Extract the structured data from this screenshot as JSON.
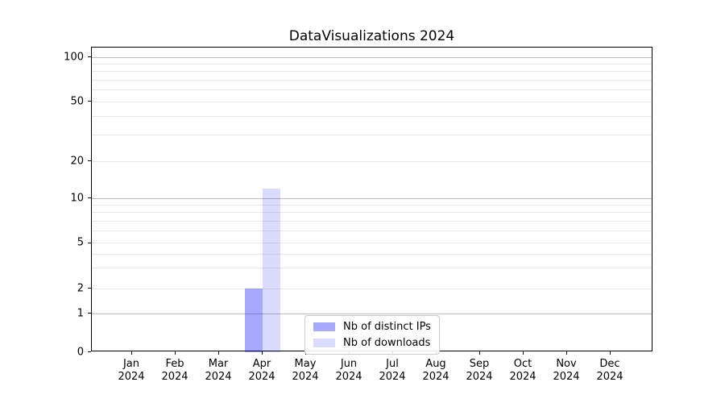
{
  "chart_data": {
    "type": "bar",
    "title": "DataVisualizations 2024",
    "x_year": "2024",
    "categories": [
      "Jan",
      "Feb",
      "Mar",
      "Apr",
      "May",
      "Jun",
      "Jul",
      "Aug",
      "Sep",
      "Oct",
      "Nov",
      "Dec"
    ],
    "series": [
      {
        "name": "Nb of distinct IPs",
        "color": "#0000ff",
        "alpha": 0.34,
        "apparent_color": "#a9a9ff",
        "values": [
          0,
          0,
          0,
          2,
          0,
          0,
          0,
          0,
          0,
          0,
          0,
          0
        ]
      },
      {
        "name": "Nb of downloads",
        "color": "#0000ff",
        "alpha": 0.14,
        "apparent_color": "#dcdcff",
        "values": [
          0,
          0,
          0,
          12,
          0,
          0,
          0,
          0,
          0,
          0,
          0,
          0
        ]
      }
    ],
    "y_scale": "symlog",
    "y_ticks_labeled": [
      0,
      1,
      2,
      5,
      10,
      20,
      50,
      100
    ],
    "y_gridlines_major": [
      1,
      10,
      100
    ],
    "y_gridlines_minor": [
      2,
      3,
      4,
      5,
      6,
      7,
      8,
      9,
      20,
      30,
      40,
      50,
      60,
      70,
      80,
      90
    ],
    "ylim": [
      0,
      120
    ],
    "grid": "on",
    "legend_position": "lower center",
    "colors": {
      "grid_major": "#bdbdbd",
      "grid_minor": "#e9e9e9",
      "spine": "#000000",
      "text": "#000000",
      "legend_border": "#cccccc",
      "background": "#ffffff"
    }
  }
}
